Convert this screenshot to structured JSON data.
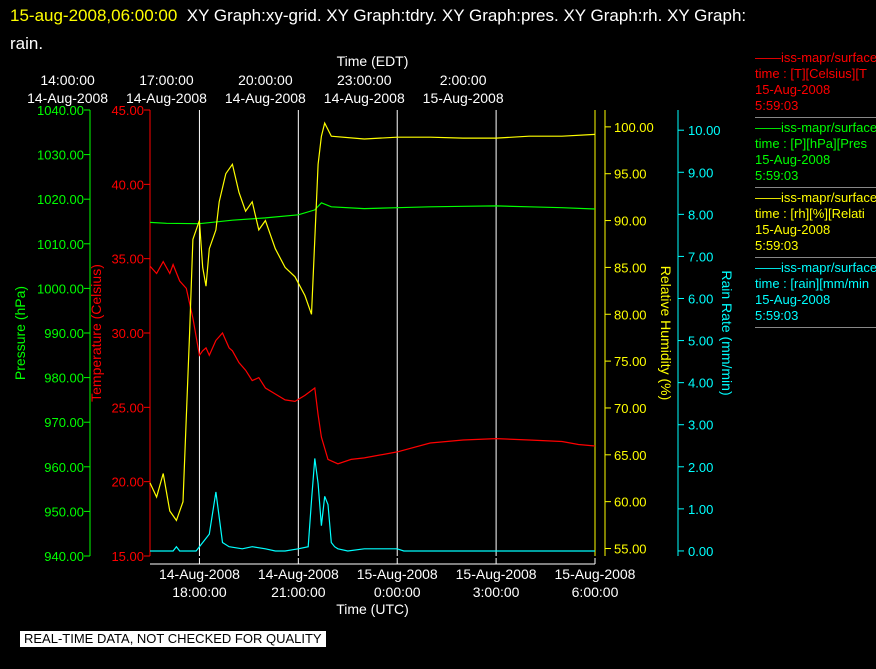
{
  "header": {
    "date": "15-aug-2008,06:00:00",
    "graphs": "XY Graph:xy-grid.  XY Graph:tdry.  XY Graph:pres.  XY Graph:rh.  XY Graph:",
    "graphs_line2": "rain."
  },
  "colors": {
    "temperature": "#ff0000",
    "pressure": "#00ff00",
    "humidity": "#ffff00",
    "rain": "#00ffff",
    "grid": "#ffffff"
  },
  "legend": [
    {
      "line1": "——iss-mapr/surface",
      "line2": "time : [T][Celsius][T",
      "line3": "15-Aug-2008",
      "line4": "5:59:03",
      "color": "#ff0000"
    },
    {
      "line1": "——iss-mapr/surface",
      "line2": "time : [P][hPa][Pres",
      "line3": "15-Aug-2008",
      "line4": "5:59:03",
      "color": "#00ff00"
    },
    {
      "line1": "——iss-mapr/surface",
      "line2": "time : [rh][%][Relati",
      "line3": "15-Aug-2008",
      "line4": "5:59:03",
      "color": "#ffff00"
    },
    {
      "line1": "——iss-mapr/surface",
      "line2": "time : [rain][mm/min",
      "line3": "15-Aug-2008",
      "line4": "5:59:03",
      "color": "#00ffff"
    }
  ],
  "footer_note": "REAL-TIME DATA, NOT CHECKED FOR QUALITY",
  "chart_data": {
    "type": "line",
    "top_axis": {
      "label": "Time (EDT)",
      "ticks": [
        {
          "t": -4,
          "time": "14:00:00",
          "date": "14-Aug-2008"
        },
        {
          "t": -1,
          "time": "17:00:00",
          "date": "14-Aug-2008"
        },
        {
          "t": 2,
          "time": "20:00:00",
          "date": "14-Aug-2008"
        },
        {
          "t": 5,
          "time": "23:00:00",
          "date": "14-Aug-2008"
        },
        {
          "t": 8,
          "time": "2:00:00",
          "date": "15-Aug-2008"
        }
      ]
    },
    "bottom_axis": {
      "label": "Time (UTC)",
      "ticks": [
        {
          "t": 0,
          "date": "14-Aug-2008",
          "time": "18:00:00"
        },
        {
          "t": 3,
          "date": "14-Aug-2008",
          "time": "21:00:00"
        },
        {
          "t": 6,
          "date": "15-Aug-2008",
          "time": "0:00:00"
        },
        {
          "t": 9,
          "date": "15-Aug-2008",
          "time": "3:00:00"
        },
        {
          "t": 12,
          "date": "15-Aug-2008",
          "time": "6:00:00"
        }
      ]
    },
    "x_range_hours": [
      -1.5,
      12
    ],
    "grid": true,
    "axes": {
      "pressure": {
        "label": "Pressure (hPa)",
        "range": [
          940,
          1040
        ],
        "ticks": [
          "940.00",
          "950.00",
          "960.00",
          "970.00",
          "980.00",
          "990.00",
          "1000.00",
          "1010.00",
          "1020.00",
          "1030.00",
          "1040.00"
        ]
      },
      "temperature": {
        "label": "Temperature (Celsius)",
        "range": [
          15,
          45
        ],
        "ticks": [
          "15.00",
          "20.00",
          "25.00",
          "30.00",
          "35.00",
          "40.00",
          "45.00"
        ]
      },
      "humidity": {
        "label": "Relative Humidity (%)",
        "range": [
          54.2,
          101.8
        ],
        "ticks": [
          "55.00",
          "60.00",
          "65.00",
          "70.00",
          "75.00",
          "80.00",
          "85.00",
          "90.00",
          "95.00",
          "100.00"
        ]
      },
      "rain": {
        "label": "Rain Rate (mm/min)",
        "range": [
          -0.12,
          10.48
        ],
        "ticks": [
          "0.00",
          "1.00",
          "2.00",
          "3.00",
          "4.00",
          "5.00",
          "6.00",
          "7.00",
          "8.00",
          "9.00",
          "10.00"
        ]
      }
    },
    "series": [
      {
        "key": "temperature",
        "x": [
          -1.5,
          -1.3,
          -1.1,
          -0.9,
          -0.8,
          -0.6,
          -0.4,
          -0.2,
          0,
          0.1,
          0.2,
          0.3,
          0.5,
          0.7,
          0.9,
          1.0,
          1.2,
          1.4,
          1.6,
          1.8,
          2.0,
          2.3,
          2.6,
          2.9,
          3.2,
          3.5,
          3.6,
          3.7,
          3.9,
          4.2,
          4.6,
          5,
          6,
          7,
          8,
          9,
          10,
          11,
          11.5,
          12
        ],
        "y": [
          34.5,
          34,
          34.8,
          34,
          34.6,
          33.5,
          33,
          31,
          28.5,
          28.8,
          29,
          28.5,
          29.5,
          30,
          29,
          28.8,
          28,
          27.5,
          26.8,
          27,
          26.3,
          25.9,
          25.5,
          25.4,
          25.8,
          26.3,
          24.5,
          23,
          21.5,
          21.2,
          21.5,
          21.6,
          22,
          22.6,
          22.8,
          22.9,
          22.8,
          22.7,
          22.5,
          22.4
        ]
      },
      {
        "key": "pressure",
        "x": [
          -1.5,
          -1,
          0,
          1,
          2,
          3,
          3.5,
          3.7,
          4,
          5,
          6,
          7,
          8,
          9,
          10,
          11,
          12
        ],
        "y": [
          1014.8,
          1014.6,
          1014.5,
          1015.3,
          1015.8,
          1016.5,
          1017.6,
          1019.2,
          1018.3,
          1017.9,
          1018.1,
          1018.3,
          1018.4,
          1018.5,
          1018.3,
          1018.1,
          1017.8
        ]
      },
      {
        "key": "humidity",
        "x": [
          -1.5,
          -1.3,
          -1.1,
          -0.9,
          -0.7,
          -0.5,
          -0.3,
          -0.2,
          0,
          0.1,
          0.2,
          0.3,
          0.5,
          0.6,
          0.8,
          1.0,
          1.2,
          1.4,
          1.6,
          1.8,
          2.0,
          2.3,
          2.6,
          2.9,
          3.2,
          3.4,
          3.5,
          3.6,
          3.7,
          3.8,
          4,
          5,
          6,
          7,
          8,
          9,
          10,
          11,
          12
        ],
        "y": [
          62,
          60.5,
          63,
          59,
          58,
          60,
          78,
          88,
          90,
          85,
          83,
          87,
          89,
          92,
          95,
          96,
          93,
          91,
          92,
          89,
          90,
          87,
          85,
          84,
          82,
          80,
          88,
          96,
          99,
          100.4,
          99,
          98.7,
          98.9,
          98.9,
          98.8,
          98.8,
          99,
          99,
          99.2
        ]
      },
      {
        "key": "rain",
        "x": [
          -1.5,
          -0.8,
          -0.7,
          -0.6,
          -0.5,
          -0.4,
          -0.3,
          -0.2,
          -0.1,
          0,
          0.3,
          0.5,
          0.7,
          0.9,
          1.3,
          1.6,
          2.0,
          2.3,
          2.6,
          3.0,
          3.3,
          3.4,
          3.5,
          3.6,
          3.7,
          3.8,
          3.9,
          4.0,
          4.1,
          4.2,
          4.5,
          5,
          6,
          6.2,
          7.5,
          8,
          9,
          10,
          11,
          12
        ],
        "y": [
          0,
          0,
          0.1,
          0,
          0,
          0,
          0,
          0,
          0,
          0.1,
          0.4,
          1.4,
          0.2,
          0.1,
          0.05,
          0.1,
          0.05,
          0,
          0,
          0.05,
          0.1,
          1.2,
          2.2,
          1.6,
          0.6,
          1.3,
          1.1,
          0.2,
          0.1,
          0.05,
          0,
          0.05,
          0.05,
          0,
          0,
          0,
          0,
          0,
          0,
          0
        ]
      }
    ]
  }
}
